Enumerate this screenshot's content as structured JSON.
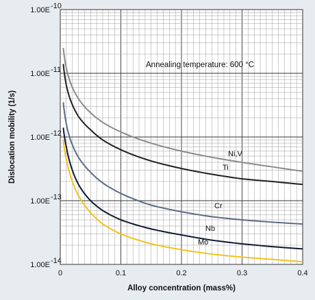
{
  "chart_data": {
    "type": "line",
    "xlabel": "Alloy concentration (mass%)",
    "ylabel": "Dislocation mobility (1/s)",
    "annotation": "Annealing temperature: 600 °C",
    "xlim": [
      0,
      0.4
    ],
    "ylim_log10": [
      -14,
      -10
    ],
    "y_scale": "log",
    "grid": true,
    "x_ticks": [
      "0",
      "0.1",
      "0.2",
      "0.3",
      "0.4"
    ],
    "x_tick_values": [
      0,
      0.1,
      0.2,
      0.3,
      0.4
    ],
    "y_ticks": [
      {
        "base": "1.00E",
        "exp": "-10",
        "value": -10
      },
      {
        "base": "1.00E",
        "exp": "-11",
        "value": -11
      },
      {
        "base": "1.00E",
        "exp": "-12",
        "value": -12
      },
      {
        "base": "1.00E",
        "exp": "-13",
        "value": -13
      },
      {
        "base": "1.00E",
        "exp": "-14",
        "value": -14
      }
    ],
    "series": [
      {
        "name": "Ni,V",
        "color": "#8a8a8a",
        "x": [
          0.005,
          0.01,
          0.02,
          0.03,
          0.05,
          0.07,
          0.1,
          0.15,
          0.2,
          0.25,
          0.3,
          0.35,
          0.4
        ],
        "y": [
          2.5e-11,
          1.2e-11,
          6e-12,
          4e-12,
          2.4e-12,
          1.7e-12,
          1.2e-12,
          8e-13,
          6e-13,
          4.8e-13,
          4e-13,
          3.4e-13,
          2.9e-13
        ]
      },
      {
        "name": "Ti",
        "color": "#1f1f1f",
        "x": [
          0.005,
          0.01,
          0.02,
          0.03,
          0.05,
          0.07,
          0.1,
          0.15,
          0.2,
          0.25,
          0.3,
          0.35,
          0.4
        ],
        "y": [
          1.4e-11,
          6.5e-12,
          3.2e-12,
          2.1e-12,
          1.3e-12,
          9e-13,
          6.3e-13,
          4.2e-13,
          3.2e-13,
          2.6e-13,
          2.2e-13,
          2e-13,
          1.8e-13
        ]
      },
      {
        "name": "Cr",
        "color": "#5a6a85",
        "x": [
          0.005,
          0.01,
          0.02,
          0.03,
          0.05,
          0.07,
          0.1,
          0.15,
          0.2,
          0.25,
          0.3,
          0.35,
          0.4
        ],
        "y": [
          3.5e-12,
          1.6e-12,
          7.5e-13,
          4.8e-13,
          2.8e-13,
          1.9e-13,
          1.3e-13,
          8.5e-14,
          6.7e-14,
          5.6e-14,
          5e-14,
          4.6e-14,
          4.3e-14
        ]
      },
      {
        "name": "Nb",
        "color": "#0f1830",
        "x": [
          0.005,
          0.01,
          0.02,
          0.03,
          0.05,
          0.07,
          0.1,
          0.15,
          0.2,
          0.25,
          0.3,
          0.35,
          0.4
        ],
        "y": [
          1.4e-12,
          7e-13,
          3e-13,
          1.8e-13,
          1e-13,
          7e-14,
          5e-14,
          3.6e-14,
          2.9e-14,
          2.4e-14,
          2.1e-14,
          1.9e-14,
          1.75e-14
        ]
      },
      {
        "name": "Mo",
        "color": "#f2c31b",
        "x": [
          0.005,
          0.01,
          0.02,
          0.03,
          0.05,
          0.07,
          0.1,
          0.15,
          0.2,
          0.25,
          0.3,
          0.35,
          0.4
        ],
        "y": [
          9e-13,
          4.5e-13,
          2e-13,
          1.2e-13,
          6.5e-14,
          4.3e-14,
          3e-14,
          2.1e-14,
          1.7e-14,
          1.45e-14,
          1.3e-14,
          1.2e-14,
          1.1e-14
        ]
      }
    ]
  }
}
